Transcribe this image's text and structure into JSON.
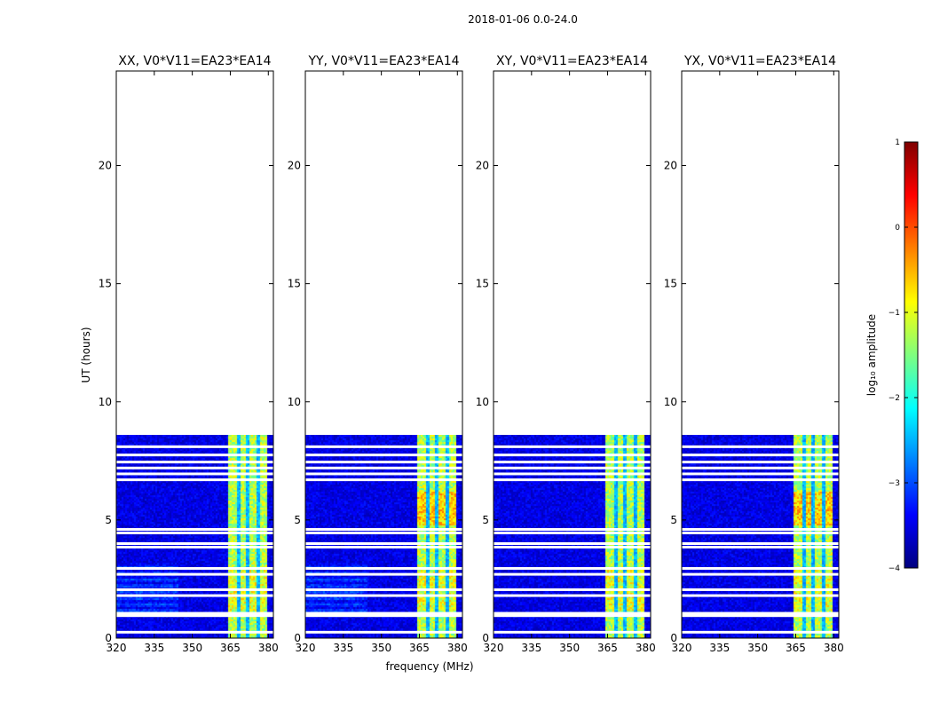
{
  "chart_data": {
    "type": "heatmap",
    "suptitle": "2018-01-06 0.0-24.0",
    "xlabel": "frequency (MHz)",
    "ylabel": "UT (hours)",
    "xlim": [
      320,
      382
    ],
    "ylim": [
      0,
      24
    ],
    "xticks": [
      320,
      335,
      350,
      365,
      380
    ],
    "yticks": [
      0,
      5,
      10,
      15,
      20
    ],
    "data_end_hours": 8.6,
    "band_mhz": [
      363.5,
      379.5
    ],
    "band_channel_gaps_mhz": [
      368,
      371.5,
      375.5
    ],
    "flagged_rows_hours": [
      0.25,
      0.95,
      1.05,
      1.8,
      2.05,
      2.7,
      2.95,
      3.85,
      4.0,
      4.45,
      4.6,
      6.7,
      6.95,
      7.2,
      7.45,
      7.75,
      8.1
    ],
    "panels": [
      {
        "title": "XX, V0*V11=EA23*EA14"
      },
      {
        "title": "YY, V0*V11=EA23*EA14"
      },
      {
        "title": "XY, V0*V11=EA23*EA14"
      },
      {
        "title": "YX, V0*V11=EA23*EA14"
      }
    ],
    "colorbar": {
      "label": "log₁₀ amplitude",
      "range": [
        -4,
        1
      ],
      "ticks": [
        1,
        0,
        -1,
        -2,
        -3,
        -4
      ],
      "tick_labels": [
        "1",
        "0",
        "−1",
        "−2",
        "−3",
        "−4"
      ],
      "colormap": [
        "#00007f",
        "#0000ff",
        "#007fff",
        "#00ffff",
        "#7fff7f",
        "#ffff00",
        "#ff7f00",
        "#ff0000",
        "#7f0000"
      ]
    }
  }
}
